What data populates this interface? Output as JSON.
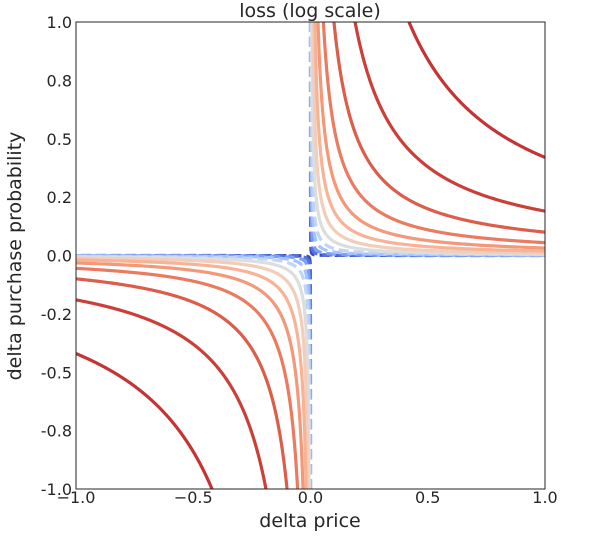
{
  "chart_data": {
    "type": "contour",
    "title": "loss (log scale)",
    "xlabel": "delta price",
    "ylabel": "delta purchase probability",
    "xlim": [
      -1.0,
      1.0
    ],
    "ylim": [
      -1.0,
      1.0
    ],
    "x_ticks": [
      {
        "value": -1.0,
        "label": "−1.0"
      },
      {
        "value": -0.5,
        "label": "−0.5"
      },
      {
        "value": 0.0,
        "label": "0.0"
      },
      {
        "value": 0.5,
        "label": "0.5"
      },
      {
        "value": 1.0,
        "label": "1.0"
      }
    ],
    "y_ticks": [
      {
        "value": 1.0,
        "label": "1.0"
      },
      {
        "value": 0.75,
        "label": "0.8"
      },
      {
        "value": 0.5,
        "label": "0.5"
      },
      {
        "value": 0.25,
        "label": "0.2"
      },
      {
        "value": 0.0,
        "label": "0.0"
      },
      {
        "value": -0.25,
        "label": "-0.2"
      },
      {
        "value": -0.5,
        "label": "-0.5"
      },
      {
        "value": -0.75,
        "label": "-0.8"
      },
      {
        "value": -1.0,
        "label": "-1.0"
      }
    ],
    "function": "loss ~ log(delta_price * delta_purchase_probability), defined where the product is positive (quadrants I and III)",
    "colormap": "coolwarm",
    "grid": false,
    "contour_levels": [
      {
        "product": 5e-05,
        "color": "#3b4cc0",
        "dashed": true
      },
      {
        "product": 0.0002,
        "color": "#5572df",
        "dashed": true
      },
      {
        "product": 0.0006,
        "color": "#7b9ff9",
        "dashed": true
      },
      {
        "product": 0.0015,
        "color": "#a3c2fe",
        "dashed": true
      },
      {
        "product": 0.003,
        "color": "#c0d4f5",
        "dashed": true
      },
      {
        "product": 0.006,
        "color": "#dcdddd",
        "dashed": false
      },
      {
        "product": 0.011,
        "color": "#f1cdba",
        "dashed": false
      },
      {
        "product": 0.019,
        "color": "#f7b396",
        "dashed": false
      },
      {
        "product": 0.032,
        "color": "#f4987a",
        "dashed": false
      },
      {
        "product": 0.055,
        "color": "#ea7b60",
        "dashed": false
      },
      {
        "product": 0.1,
        "color": "#dc5d4a",
        "dashed": false
      },
      {
        "product": 0.19,
        "color": "#cc3f39",
        "dashed": false
      },
      {
        "product": 0.42,
        "color": "#c53334",
        "dashed": false
      }
    ]
  }
}
